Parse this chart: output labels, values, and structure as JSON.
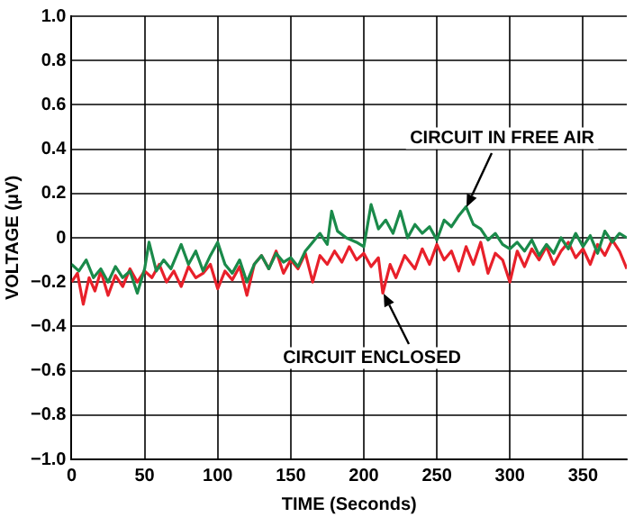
{
  "chart_data": {
    "type": "line",
    "xlabel": "TIME (Seconds)",
    "ylabel": "VOLTAGE (μV)",
    "xlim": [
      0,
      380
    ],
    "xticks": [
      0,
      50,
      100,
      150,
      200,
      250,
      300,
      350
    ],
    "ylim": [
      -1,
      1
    ],
    "yticks": [
      {
        "value": -1,
        "label": "−1.0"
      },
      -0.8,
      -0.6,
      -0.4,
      -0.2,
      0,
      0.2,
      0.4,
      0.6,
      0.8,
      {
        "value": 1,
        "label": "1.0"
      }
    ],
    "grid": true,
    "legend": false,
    "marker": "none",
    "series": [
      {
        "color": "#1a8a4a",
        "x": [
          0,
          5,
          10,
          15,
          20,
          25,
          30,
          35,
          40,
          45,
          50,
          53,
          58,
          63,
          68,
          75,
          80,
          85,
          90,
          95,
          100,
          105,
          110,
          115,
          120,
          125,
          130,
          135,
          140,
          145,
          150,
          155,
          160,
          165,
          170,
          175,
          178,
          182,
          188,
          195,
          200,
          205,
          210,
          215,
          220,
          225,
          230,
          235,
          240,
          245,
          250,
          255,
          260,
          265,
          270,
          275,
          280,
          285,
          290,
          295,
          300,
          305,
          310,
          315,
          320,
          325,
          330,
          335,
          340,
          345,
          350,
          355,
          360,
          365,
          370,
          375,
          380
        ],
        "values": [
          -0.12,
          -0.15,
          -0.1,
          -0.18,
          -0.14,
          -0.2,
          -0.13,
          -0.18,
          -0.15,
          -0.25,
          -0.14,
          -0.02,
          -0.15,
          -0.1,
          -0.14,
          -0.03,
          -0.12,
          -0.06,
          -0.15,
          -0.08,
          -0.02,
          -0.12,
          -0.16,
          -0.1,
          -0.2,
          -0.12,
          -0.08,
          -0.14,
          -0.07,
          -0.11,
          -0.09,
          -0.13,
          -0.06,
          -0.02,
          0.02,
          -0.03,
          0.12,
          0.03,
          0.0,
          -0.02,
          -0.04,
          0.15,
          0.04,
          0.08,
          0.02,
          0.12,
          0.0,
          0.06,
          0.02,
          0.05,
          -0.01,
          0.08,
          0.05,
          0.1,
          0.14,
          0.06,
          0.04,
          -0.01,
          0.02,
          -0.03,
          -0.05,
          -0.02,
          -0.06,
          -0.01,
          -0.08,
          -0.03,
          -0.07,
          0.0,
          -0.05,
          0.02,
          -0.04,
          0.01,
          -0.07,
          0.03,
          -0.02,
          0.02,
          0.0
        ]
      },
      {
        "color": "#e8202a",
        "x": [
          0,
          4,
          8,
          12,
          16,
          20,
          25,
          30,
          35,
          40,
          45,
          50,
          55,
          60,
          65,
          70,
          75,
          80,
          85,
          90,
          95,
          100,
          105,
          110,
          115,
          120,
          125,
          130,
          135,
          140,
          145,
          150,
          155,
          160,
          165,
          170,
          175,
          180,
          185,
          190,
          195,
          200,
          205,
          210,
          213,
          218,
          222,
          228,
          235,
          240,
          245,
          250,
          255,
          260,
          265,
          270,
          275,
          280,
          285,
          290,
          295,
          300,
          305,
          310,
          315,
          320,
          325,
          330,
          335,
          340,
          345,
          350,
          355,
          360,
          365,
          370,
          375,
          380
        ],
        "values": [
          -0.2,
          -0.16,
          -0.3,
          -0.18,
          -0.24,
          -0.15,
          -0.26,
          -0.17,
          -0.22,
          -0.14,
          -0.2,
          -0.15,
          -0.18,
          -0.12,
          -0.2,
          -0.15,
          -0.22,
          -0.13,
          -0.18,
          -0.16,
          -0.12,
          -0.23,
          -0.15,
          -0.19,
          -0.13,
          -0.26,
          -0.12,
          -0.08,
          -0.14,
          -0.06,
          -0.16,
          -0.1,
          -0.14,
          -0.07,
          -0.2,
          -0.08,
          -0.12,
          -0.06,
          -0.11,
          -0.04,
          -0.1,
          -0.07,
          -0.13,
          -0.09,
          -0.25,
          -0.12,
          -0.18,
          -0.08,
          -0.14,
          -0.05,
          -0.12,
          -0.03,
          -0.1,
          -0.06,
          -0.15,
          -0.04,
          -0.12,
          -0.02,
          -0.16,
          -0.07,
          -0.1,
          -0.2,
          -0.06,
          -0.13,
          -0.05,
          -0.1,
          -0.04,
          -0.12,
          -0.06,
          -0.02,
          -0.09,
          -0.05,
          -0.12,
          -0.03,
          -0.08,
          -0.01,
          -0.06,
          -0.14
        ]
      }
    ],
    "annotations": [
      {
        "text": "CIRCUIT IN FREE AIR",
        "x": 270,
        "y": 0.14
      },
      {
        "text": "CIRCUIT ENCLOSED",
        "x": 213,
        "y": -0.25
      }
    ]
  }
}
